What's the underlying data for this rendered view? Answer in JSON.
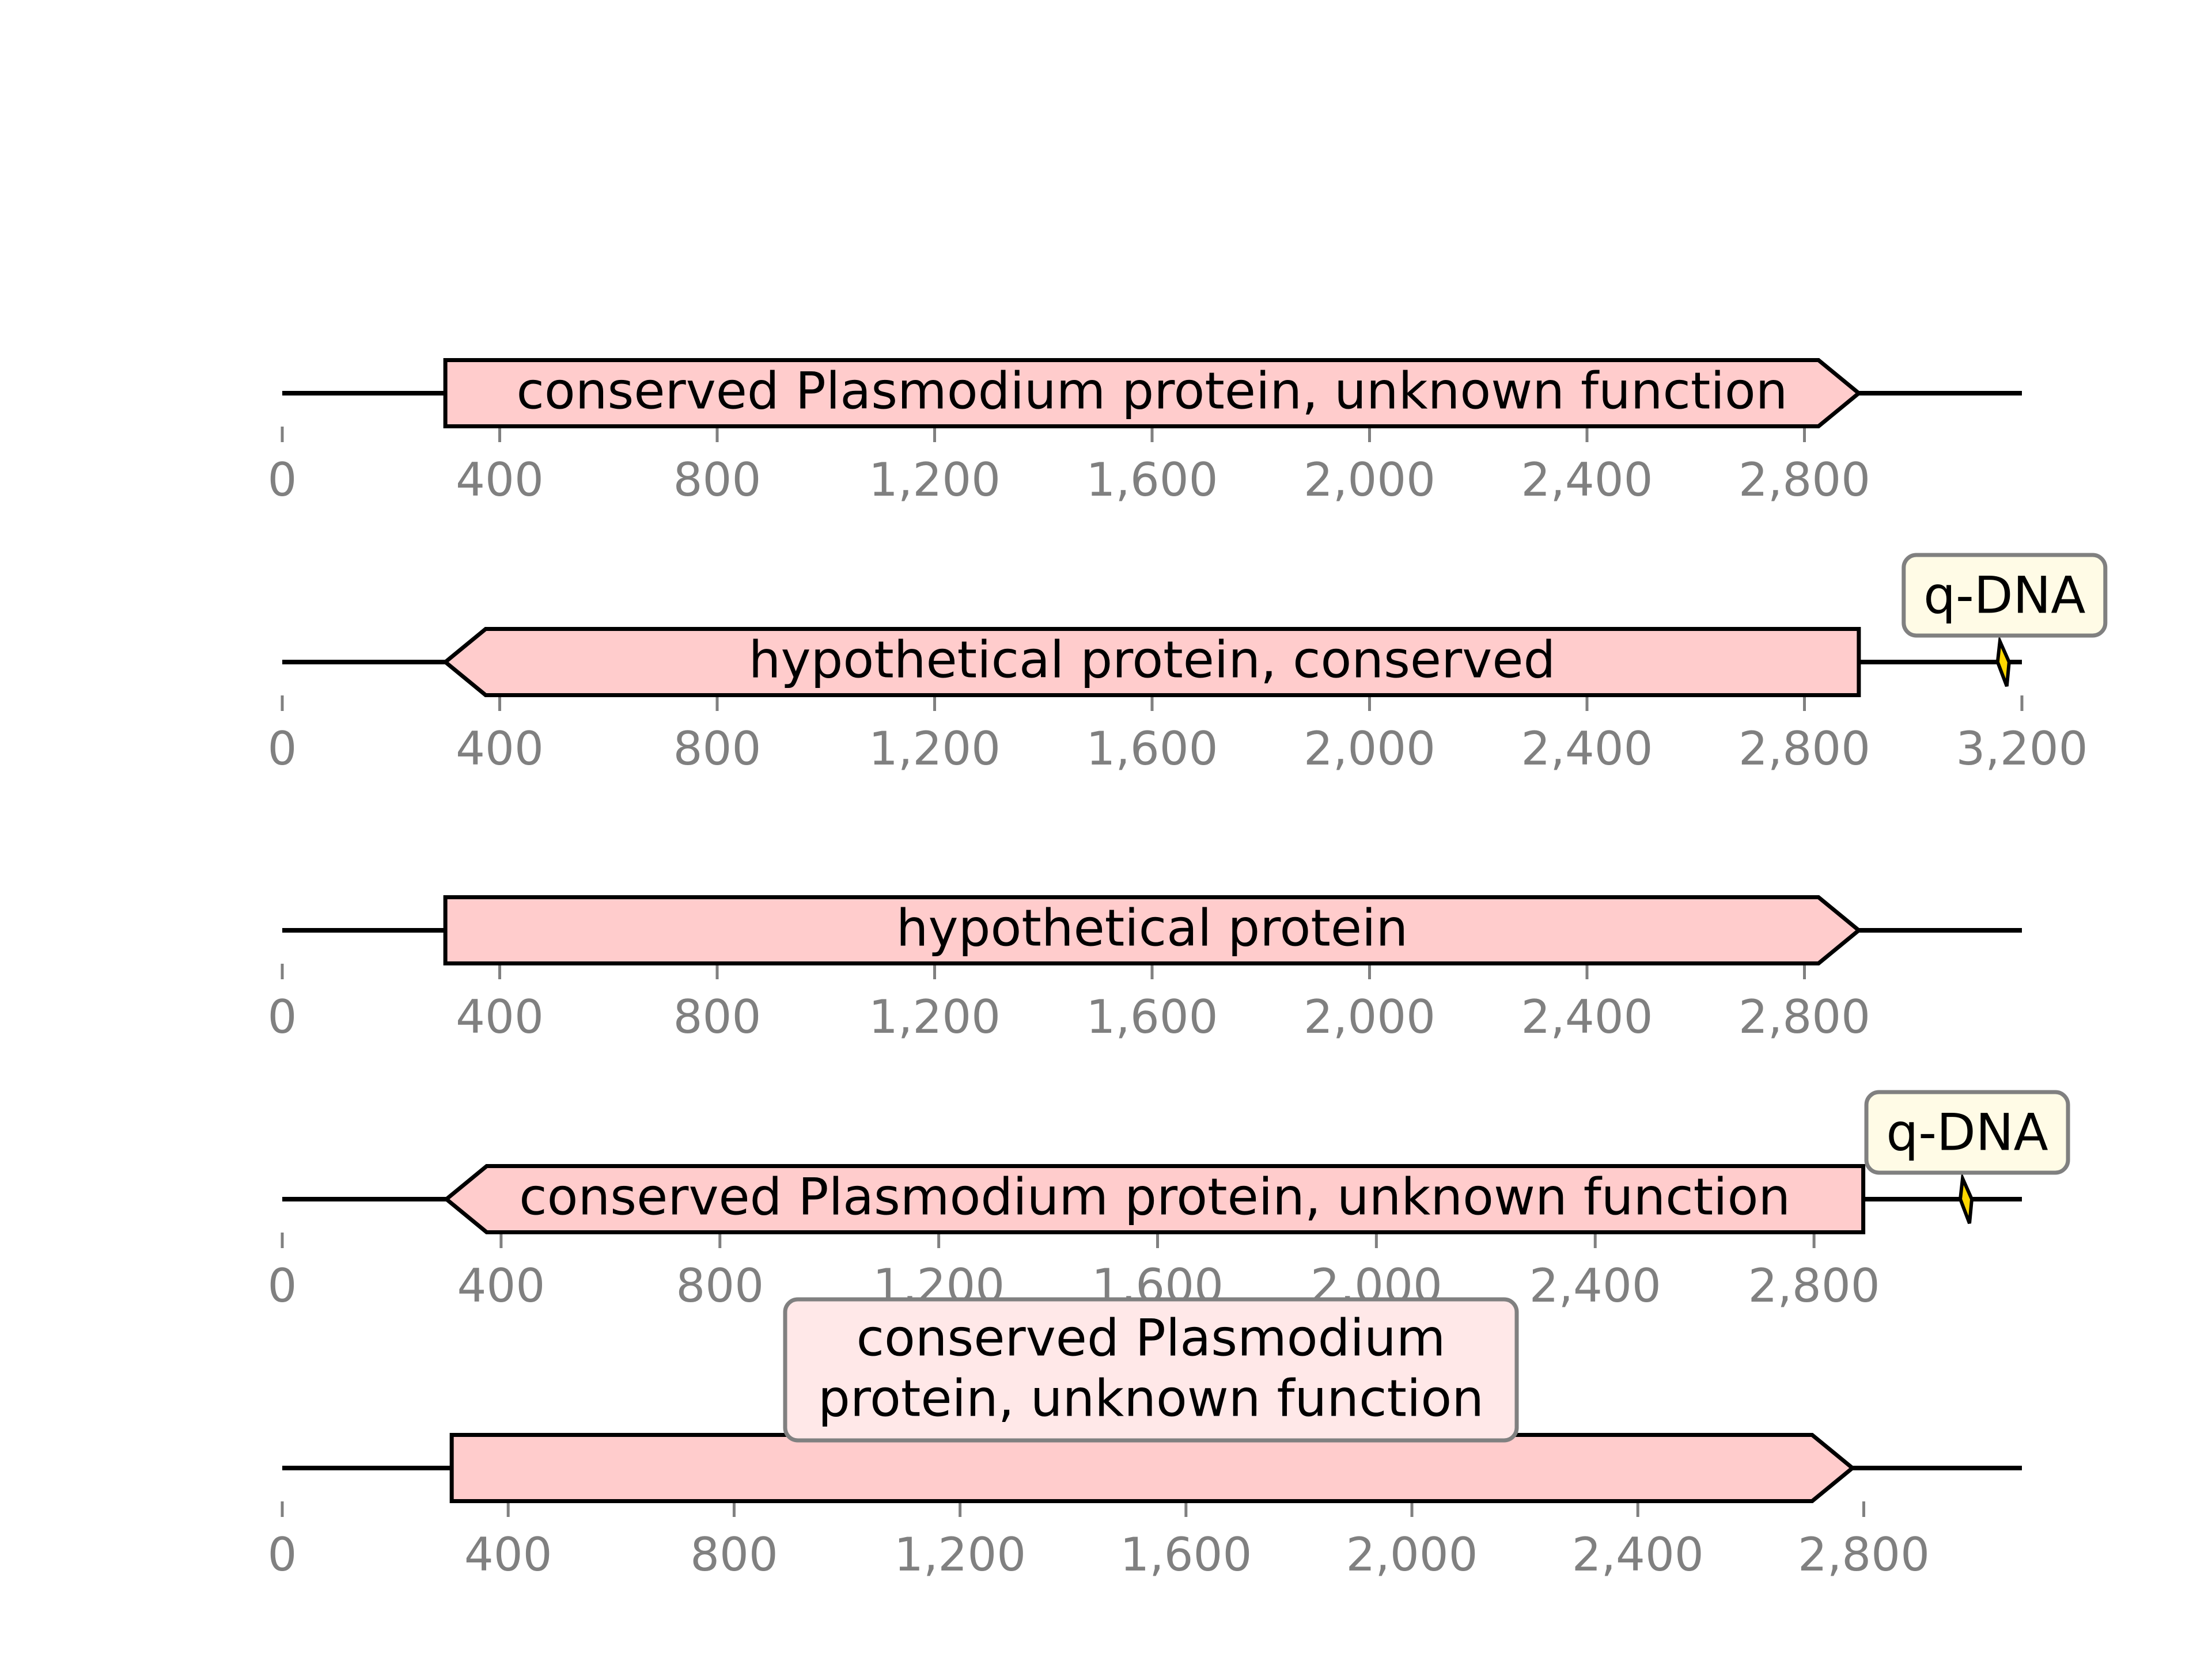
{
  "tracks": [
    {
      "id": "track-1",
      "seq_length": 3200,
      "ticks": [
        0,
        400,
        800,
        1200,
        1600,
        2000,
        2400,
        2800
      ],
      "tick_labels": [
        "0",
        "400",
        "800",
        "1,200",
        "1,600",
        "2,000",
        "2,400",
        "2,800"
      ],
      "features": [
        {
          "start": 300,
          "end": 2900,
          "strand": 1,
          "label": "conserved Plasmodium protein, unknown function",
          "label_mode": "inline"
        }
      ],
      "sites": []
    },
    {
      "id": "track-2",
      "seq_length": 3200,
      "ticks": [
        0,
        400,
        800,
        1200,
        1600,
        2000,
        2400,
        2800,
        3200
      ],
      "tick_labels": [
        "0",
        "400",
        "800",
        "1,200",
        "1,600",
        "2,000",
        "2,400",
        "2,800",
        "3,200"
      ],
      "features": [
        {
          "start": 300,
          "end": 2900,
          "strand": -1,
          "label": "hypothetical protein, conserved",
          "label_mode": "inline"
        }
      ],
      "sites": [
        {
          "position": 3168,
          "label": "q-DNA"
        }
      ]
    },
    {
      "id": "track-3",
      "seq_length": 3200,
      "ticks": [
        0,
        400,
        800,
        1200,
        1600,
        2000,
        2400,
        2800
      ],
      "tick_labels": [
        "0",
        "400",
        "800",
        "1,200",
        "1,600",
        "2,000",
        "2,400",
        "2,800"
      ],
      "features": [
        {
          "start": 300,
          "end": 2900,
          "strand": 1,
          "label": "hypothetical protein",
          "label_mode": "inline"
        }
      ],
      "sites": []
    },
    {
      "id": "track-4",
      "seq_length": 3180,
      "ticks": [
        0,
        400,
        800,
        1200,
        1600,
        2000,
        2400,
        2800
      ],
      "tick_labels": [
        "0",
        "400",
        "800",
        "1,200",
        "1,600",
        "2,000",
        "2,400",
        "2,800"
      ],
      "features": [
        {
          "start": 300,
          "end": 2890,
          "strand": -1,
          "label": "conserved Plasmodium protein, unknown function",
          "label_mode": "inline"
        }
      ],
      "sites": [
        {
          "position": 3080,
          "label": "q-DNA"
        }
      ]
    },
    {
      "id": "track-5",
      "seq_length": 3080,
      "ticks": [
        0,
        400,
        800,
        1200,
        1600,
        2000,
        2400,
        2800
      ],
      "tick_labels": [
        "0",
        "400",
        "800",
        "1,200",
        "1,600",
        "2,000",
        "2,400",
        "2,800"
      ],
      "features": [
        {
          "start": 300,
          "end": 2780,
          "strand": 1,
          "label": "conserved Plasmodium protein, unknown function",
          "label_lines": [
            "conserved Plasmodium",
            "protein, unknown function"
          ],
          "label_mode": "box"
        }
      ],
      "sites": []
    }
  ],
  "colors": {
    "feature_fill": "#ffcccc",
    "site_fill": "#ffd700",
    "callout_fill": "#fffbe6",
    "tick_color": "#808080"
  }
}
